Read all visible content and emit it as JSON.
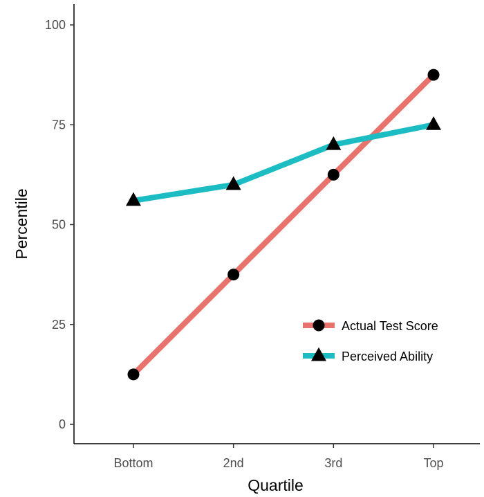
{
  "chart_data": {
    "type": "line",
    "title": "",
    "xlabel": "Quartile",
    "ylabel": "Percentile",
    "categories": [
      "Bottom",
      "2nd",
      "3rd",
      "Top"
    ],
    "ylim": [
      0,
      100
    ],
    "yticks": [
      0,
      25,
      50,
      75,
      100
    ],
    "grid": false,
    "legend_position": "bottom-right",
    "series": [
      {
        "name": "Actual Test Score",
        "values": [
          12.5,
          37.5,
          62.5,
          87.5
        ],
        "color": "#e8736c",
        "marker": "circle"
      },
      {
        "name": "Perceived Ability",
        "values": [
          56,
          60,
          70,
          75
        ],
        "color": "#1cbdc2",
        "marker": "triangle"
      }
    ]
  }
}
